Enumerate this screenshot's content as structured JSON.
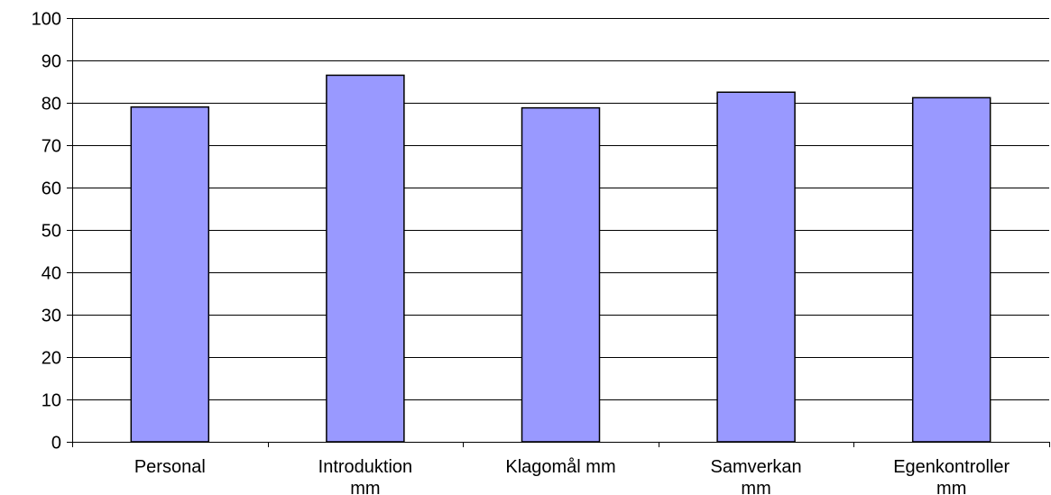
{
  "chart_data": {
    "type": "bar",
    "categories": [
      [
        "Personal"
      ],
      [
        "Introduktion",
        "mm"
      ],
      [
        "Klagomål mm"
      ],
      [
        "Samverkan",
        "mm"
      ],
      [
        "Egenkontroller",
        "mm"
      ]
    ],
    "values": [
      79,
      86.5,
      78.8,
      82.5,
      81.2
    ],
    "ylim": [
      0,
      100
    ],
    "yticks": [
      0,
      10,
      20,
      30,
      40,
      50,
      60,
      70,
      80,
      90,
      100
    ],
    "grid": true,
    "legend": "none",
    "title": "",
    "xlabel": "",
    "ylabel": "",
    "colors": {
      "bar_fill": "#9999ff",
      "bar_stroke": "#000000",
      "grid": "#000000",
      "axis": "#000000"
    }
  }
}
